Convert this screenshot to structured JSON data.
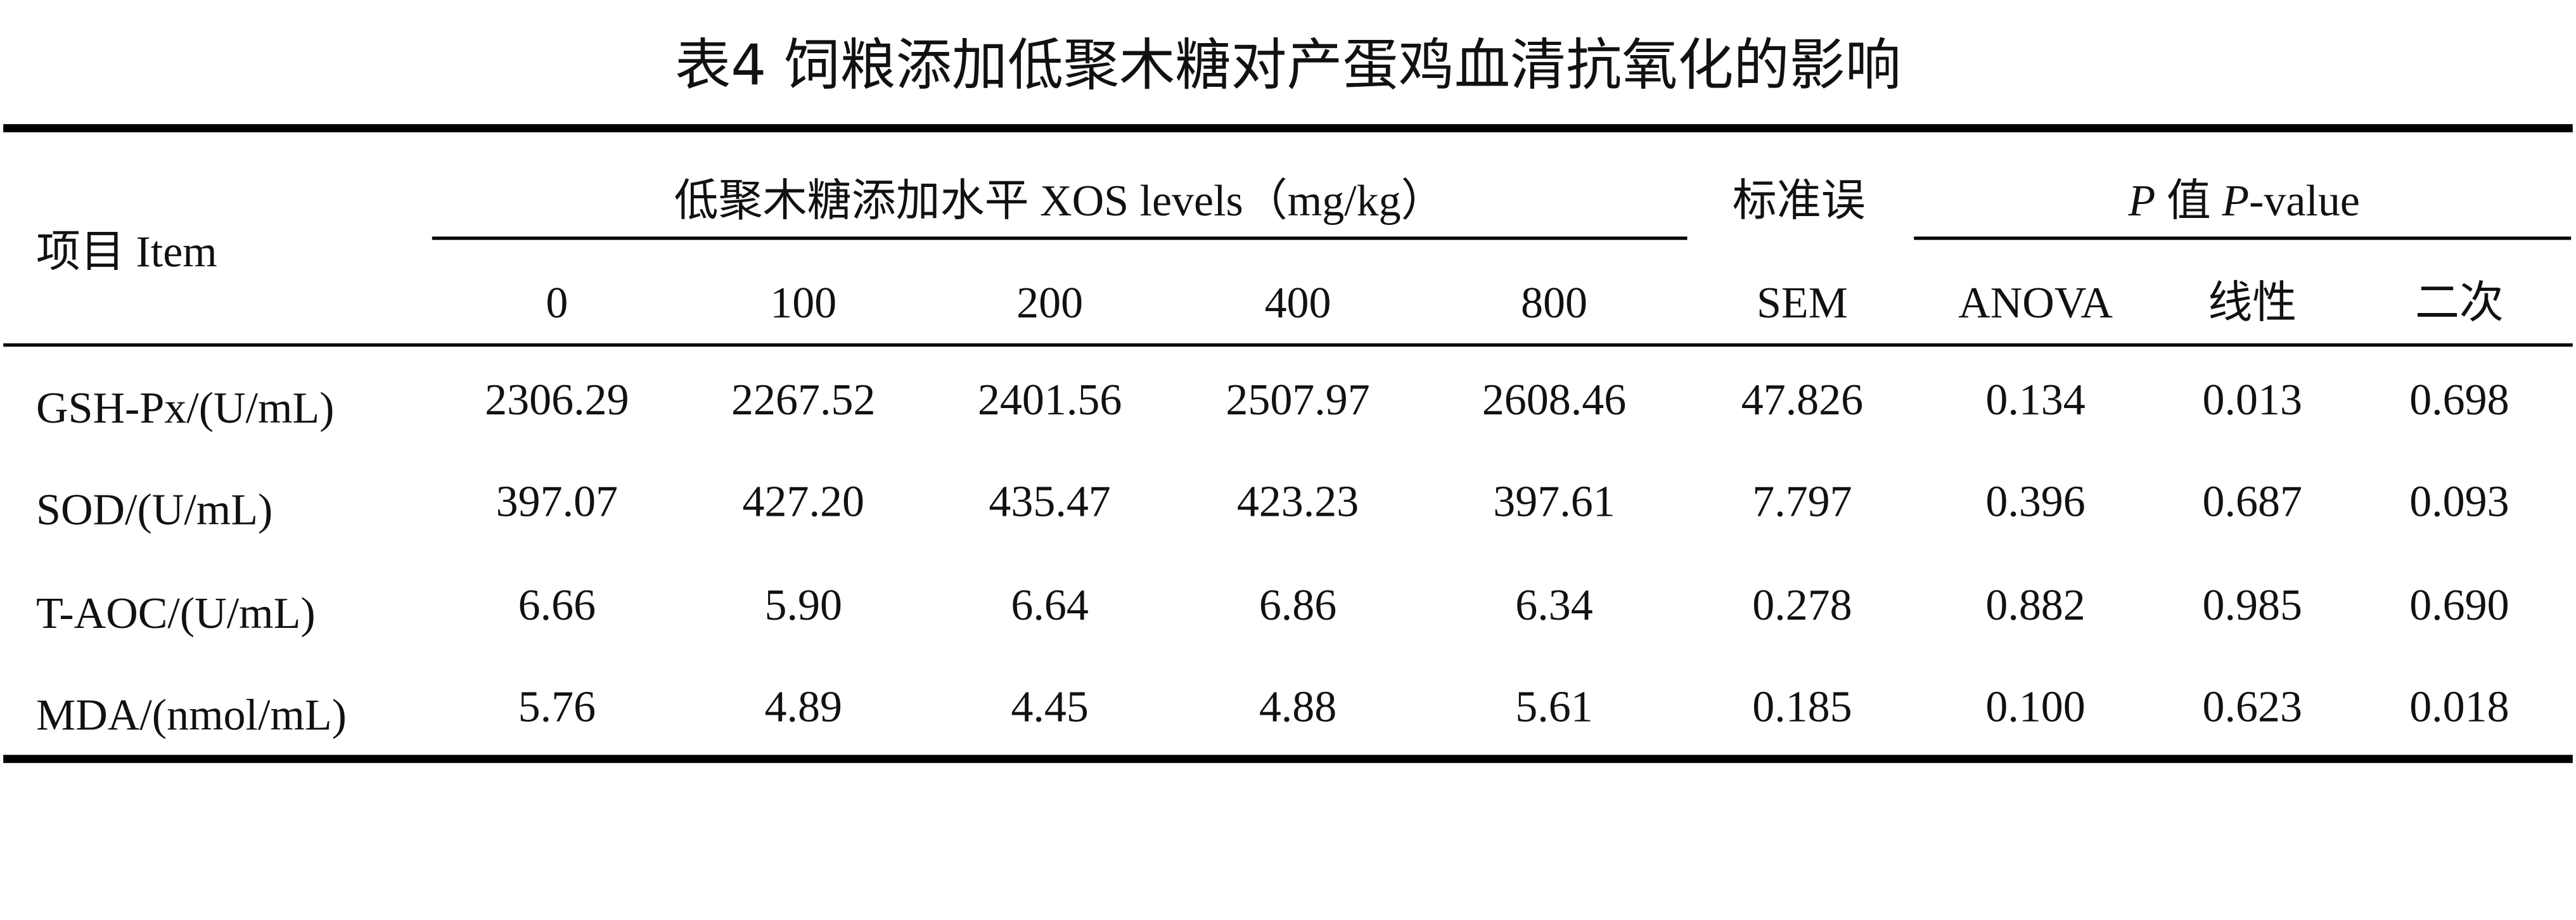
{
  "title": "表4 饲粮添加低聚木糖对产蛋鸡血清抗氧化的影响",
  "table": {
    "item_header": "项目 Item",
    "group_header": "低聚木糖添加水平 XOS levels（mg/kg）",
    "sem_header": "标准误",
    "p_header": [
      "P",
      " 值 ",
      "P",
      "-value"
    ],
    "columns": [
      "0",
      "100",
      "200",
      "400",
      "800",
      "SEM",
      "ANOVA",
      "线性",
      "二次"
    ],
    "rows": [
      [
        "GSH-Px/(U/mL)",
        "2306.29",
        "2267.52",
        "2401.56",
        "2507.97",
        "2608.46",
        "47.826",
        "0.134",
        "0.013",
        "0.698"
      ],
      [
        "SOD/(U/mL)",
        "397.07",
        "427.20",
        "435.47",
        "423.23",
        "397.61",
        "7.797",
        "0.396",
        "0.687",
        "0.093"
      ],
      [
        "T-AOC/(U/mL)",
        "6.66",
        "5.90",
        "6.64",
        "6.86",
        "6.34",
        "0.278",
        "0.882",
        "0.985",
        "0.690"
      ],
      [
        "MDA/(nmol/mL)",
        "5.76",
        "4.89",
        "4.45",
        "4.88",
        "5.61",
        "0.185",
        "0.100",
        "0.623",
        "0.018"
      ]
    ]
  }
}
